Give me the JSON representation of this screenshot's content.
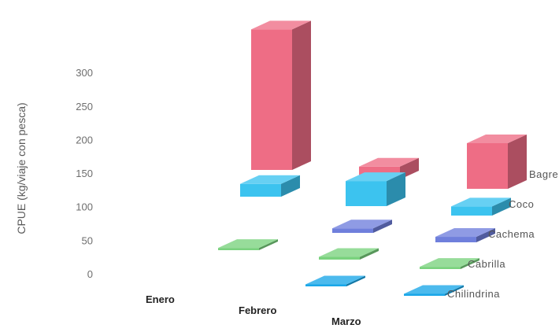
{
  "chart_data": {
    "type": "bar",
    "variant": "3d-column",
    "ylabel": "CPUE (kg/viaje con pesca)",
    "yticks": [
      0,
      50,
      100,
      150,
      200,
      250,
      300
    ],
    "ylim": [
      0,
      300
    ],
    "grid": false,
    "categories": [
      "Enero",
      "Febrero",
      "Marzo"
    ],
    "series": [
      {
        "name": "Chilindrina",
        "values": [
          null,
          4,
          4
        ],
        "color": "#1aa7e8"
      },
      {
        "name": "Cabrilla",
        "values": [
          5,
          6,
          5
        ],
        "color": "#7ad27e"
      },
      {
        "name": "Cachema",
        "values": [
          null,
          10,
          12
        ],
        "color": "#6f7fdc"
      },
      {
        "name": "Coco",
        "values": [
          28,
          55,
          20
        ],
        "color": "#3cc3ef"
      },
      {
        "name": "Bagre",
        "values": [
          308,
          28,
          100
        ],
        "color": "#ee6d85"
      }
    ]
  }
}
